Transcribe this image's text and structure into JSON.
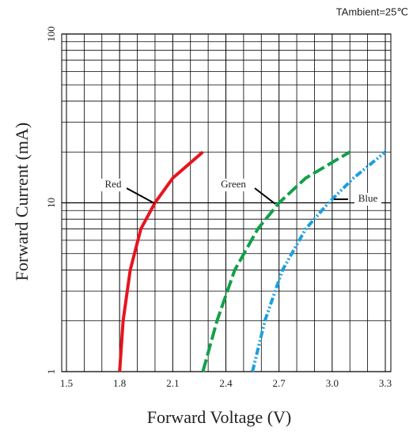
{
  "chart_data": {
    "type": "line",
    "annotation": "TAmbient=25℃",
    "x_label": "Forward Voltage (V)",
    "y_label": "Forward Current (mA)",
    "xlim": [
      1.5,
      3.3
    ],
    "xticks": [
      1.5,
      1.8,
      2.1,
      2.4,
      2.7,
      {
        "value": 3,
        "label": "3.0"
      },
      3.3
    ],
    "ylim": [
      1,
      100
    ],
    "yticks": [
      1,
      10,
      100
    ],
    "log_y": true,
    "grid": true,
    "series": [
      {
        "name": "Red",
        "color": "#e8141e",
        "style": "solid",
        "x": [
          1.8,
          1.82,
          1.86,
          1.92,
          2.0,
          2.1,
          2.27
        ],
        "values": [
          1,
          2,
          4,
          7,
          10,
          14,
          20
        ]
      },
      {
        "name": "Green",
        "color": "#12a04a",
        "style": "dashed",
        "x": [
          2.27,
          2.35,
          2.45,
          2.58,
          2.7,
          2.85,
          3.1
        ],
        "values": [
          1,
          2,
          4,
          7,
          10,
          14,
          20
        ]
      },
      {
        "name": "Blue",
        "color": "#1aa0e0",
        "style": "dashdot",
        "x": [
          2.55,
          2.62,
          2.72,
          2.85,
          2.98,
          3.12,
          3.3
        ],
        "values": [
          1,
          2,
          4,
          7,
          10,
          14,
          20
        ]
      }
    ]
  }
}
